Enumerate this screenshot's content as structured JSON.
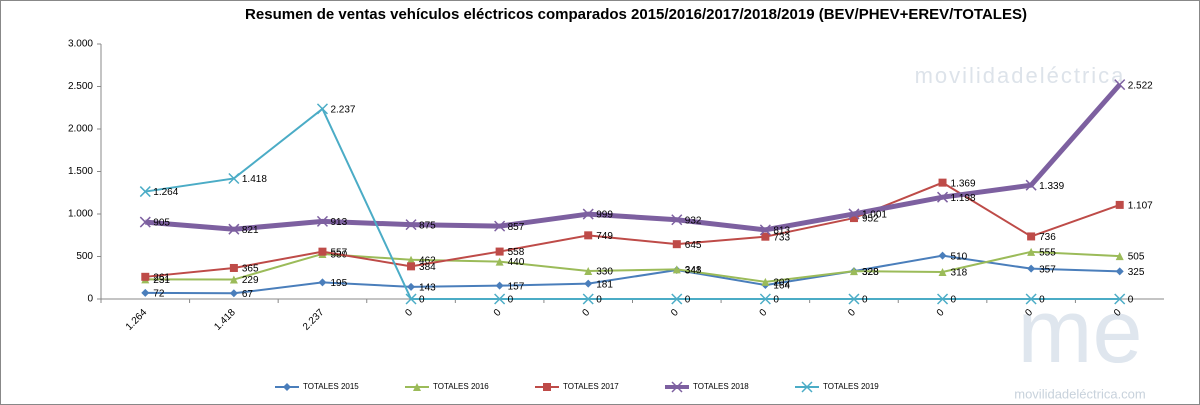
{
  "chart_data": {
    "type": "line",
    "title": "Resumen de ventas vehículos eléctricos comparados 2015/2016/2017/2018/2019  (BEV/PHEV+EREV/TOTALES)",
    "categories": [
      "1.264",
      "1.418",
      "2.237",
      "0",
      "0",
      "0",
      "0",
      "0",
      "0",
      "0",
      "0",
      "0"
    ],
    "ylim": [
      0,
      3000
    ],
    "yticks": [
      0,
      500,
      {
        "value": 1000,
        "label": "1.000"
      },
      {
        "value": 1500,
        "label": "1.500"
      },
      {
        "value": 2000,
        "label": "2.000"
      },
      {
        "value": 2500,
        "label": "2.500"
      },
      {
        "value": 3000,
        "label": "3.000"
      }
    ],
    "grid": false,
    "legend": "bottom",
    "watermarks": [
      "movilidadeléctrica",
      "me",
      "movilidadeléctrica.com"
    ],
    "series": [
      {
        "name": "TOTALES 2015",
        "color": "#4a7ebb",
        "marker": "diamond",
        "width": 2,
        "values": [
          72,
          67,
          195,
          143,
          157,
          181,
          341,
          164,
          328,
          510,
          357,
          325
        ]
      },
      {
        "name": "TOTALES 2016",
        "color": "#9bbb59",
        "marker": "triangle",
        "width": 2,
        "values": [
          231,
          229,
          530,
          462,
          440,
          330,
          348,
          202,
          328,
          318,
          555,
          505
        ]
      },
      {
        "name": "TOTALES 2017",
        "color": "#be4b48",
        "marker": "square",
        "width": 2,
        "values": [
          261,
          365,
          557,
          384,
          558,
          749,
          645,
          733,
          952,
          1369,
          736,
          1107
        ],
        "value_labels": [
          "261",
          "365",
          "557",
          "384",
          "558",
          "749",
          "645",
          "733",
          "952",
          "1.369",
          "736",
          "1.107"
        ]
      },
      {
        "name": "TOTALES 2018",
        "color": "#7d60a0",
        "marker": "x",
        "width": 5,
        "values": [
          905,
          821,
          913,
          875,
          857,
          999,
          932,
          813,
          1001,
          1198,
          1339,
          2522
        ],
        "value_labels": [
          "905",
          "821",
          "913",
          "875",
          "857",
          "999",
          "932",
          "813",
          "1.001",
          "1.198",
          "1.339",
          "2.522"
        ]
      },
      {
        "name": "TOTALES 2019",
        "color": "#4bacc6",
        "marker": "x",
        "width": 2,
        "values": [
          1264,
          1418,
          2237,
          0,
          0,
          0,
          0,
          0,
          0,
          0,
          0,
          0
        ],
        "value_labels": [
          "1.264",
          "1.418",
          "2.237",
          "0",
          "0",
          "0",
          "0",
          "0",
          "0",
          "0",
          "0",
          "0"
        ]
      }
    ]
  }
}
